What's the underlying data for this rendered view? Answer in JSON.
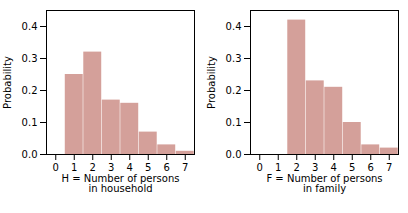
{
  "chart_data": [
    {
      "type": "bar",
      "x": [
        1,
        2,
        3,
        4,
        5,
        6,
        7
      ],
      "values": [
        0.25,
        0.32,
        0.17,
        0.16,
        0.07,
        0.03,
        0.01
      ],
      "color": "#d4a09a",
      "xlabel": "H = Number of persons\nin household",
      "ylabel": "Probability",
      "xlim": [
        -0.5,
        7.5
      ],
      "xticks": [
        0,
        1,
        2,
        3,
        4,
        5,
        6,
        7
      ],
      "ylim": [
        0,
        0.45
      ],
      "yticks": [
        {
          "value": 0.0,
          "label": "0.0"
        },
        0.1,
        0.2,
        0.3,
        0.4
      ],
      "grid": false
    },
    {
      "type": "bar",
      "x": [
        2,
        3,
        4,
        5,
        6,
        7
      ],
      "values": [
        0.42,
        0.23,
        0.21,
        0.1,
        0.03,
        0.02
      ],
      "color": "#d4a09a",
      "xlabel": "F = Number of persons\nin family",
      "ylabel": "Probability",
      "xlim": [
        -0.5,
        7.5
      ],
      "xticks": [
        0,
        1,
        2,
        3,
        4,
        5,
        6,
        7
      ],
      "ylim": [
        0,
        0.45
      ],
      "yticks": [
        {
          "value": 0.0,
          "label": "0.0"
        },
        0.1,
        0.2,
        0.3,
        0.4
      ],
      "grid": false
    }
  ]
}
